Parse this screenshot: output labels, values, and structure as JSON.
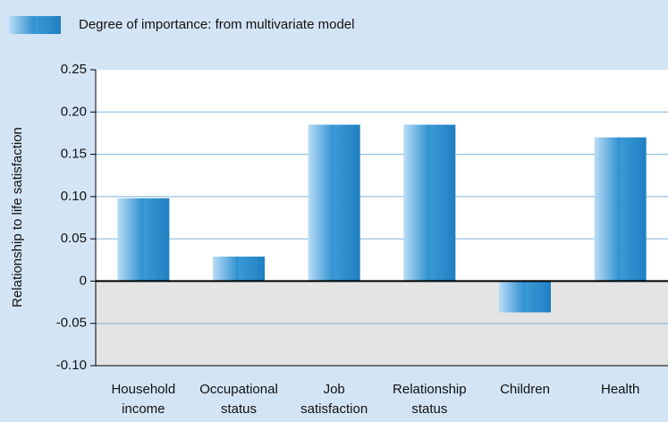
{
  "chart_data": {
    "type": "bar",
    "y_axis_label": "Relationship to life satisfaction",
    "categories": [
      "Household income",
      "Occupational status",
      "Job satisfaction",
      "Relationship status",
      "Children",
      "Health"
    ],
    "series": [
      {
        "name": "Degree of importance: from multivariate model",
        "color": "#2a8fd0",
        "values": [
          0.098,
          0.029,
          0.185,
          0.185,
          -0.037,
          0.17
        ]
      }
    ],
    "ylim": [
      -0.1,
      0.25
    ],
    "yticks": [
      {
        "value": -0.1,
        "label": "-0.10"
      },
      -0.05,
      0,
      0.05,
      {
        "value": 0.1,
        "label": "0.10"
      },
      0.15,
      {
        "value": 0.2,
        "label": "0.20"
      },
      0.25
    ],
    "grid": true
  }
}
